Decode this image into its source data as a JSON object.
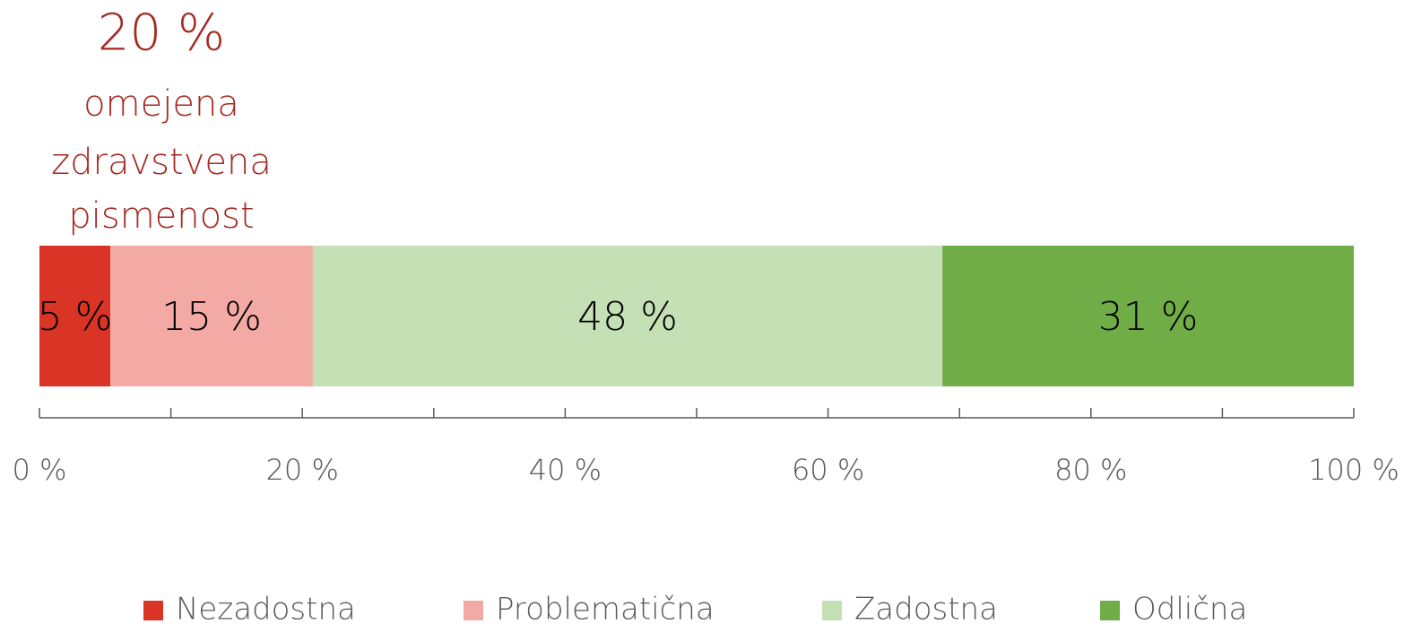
{
  "chart_data": {
    "type": "stacked-bar-horizontal",
    "annotation": {
      "headline": "20 %",
      "lines": [
        "omejena",
        "zdravstvena",
        "pismenost"
      ],
      "color": "#a52a22"
    },
    "series": [
      {
        "name": "Nezadostna",
        "color": "#d93425",
        "values": [
          5.4
        ],
        "value_labels": [
          "5 %"
        ]
      },
      {
        "name": "Problematična",
        "color": "#f4aaa4",
        "values": [
          15.4
        ],
        "value_labels": [
          "15 %"
        ]
      },
      {
        "name": "Zadostna",
        "color": "#c5e0b4",
        "values": [
          47.9
        ],
        "value_labels": [
          "48 %"
        ]
      },
      {
        "name": "Odlična",
        "color": "#70ad47",
        "values": [
          31.3
        ],
        "value_labels": [
          "31 %"
        ]
      }
    ],
    "xlim": [
      0,
      100
    ],
    "xticks": [
      {
        "value": 0,
        "label": "0 %"
      },
      {
        "value": 20,
        "label": "20 %"
      },
      {
        "value": 40,
        "label": "40 %"
      },
      {
        "value": 60,
        "label": "60 %"
      },
      {
        "value": 80,
        "label": "80 %"
      },
      {
        "value": 100,
        "label": "100 %"
      }
    ],
    "xminorticks": [
      10,
      30,
      50,
      70,
      90
    ],
    "legend": "bottom"
  }
}
